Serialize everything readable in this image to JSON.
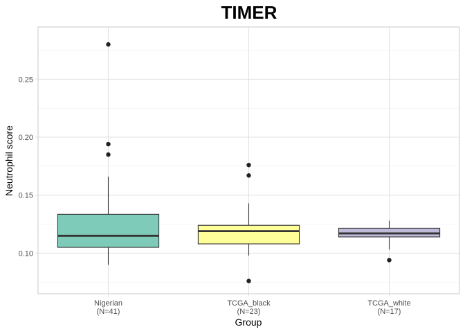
{
  "chart_data": {
    "type": "box",
    "title": "TIMER",
    "xlabel": "Group",
    "ylabel": "Neutrophil score",
    "ylim": [
      0.065,
      0.295
    ],
    "yticks": [
      0.1,
      0.15,
      0.2,
      0.25
    ],
    "ytick_labels": [
      "0.10",
      "0.15",
      "0.20",
      "0.25"
    ],
    "minor_yticks": [
      0.075,
      0.125,
      0.175,
      0.225,
      0.275
    ],
    "grid": true,
    "legend": "none",
    "categories": [
      {
        "name": "Nigerian",
        "n_label": "(N=41)",
        "color": "#7fcbba",
        "q1": 0.105,
        "median": 0.115,
        "q3": 0.1335,
        "whisker_low": 0.09,
        "whisker_high": 0.166,
        "outliers": [
          0.185,
          0.194,
          0.28
        ]
      },
      {
        "name": "TCGA_black",
        "n_label": "(N=23)",
        "color": "#ffff99",
        "q1": 0.108,
        "median": 0.119,
        "q3": 0.124,
        "whisker_low": 0.098,
        "whisker_high": 0.143,
        "outliers": [
          0.076,
          0.167,
          0.176
        ]
      },
      {
        "name": "TCGA_white",
        "n_label": "(N=17)",
        "color": "#bebada",
        "q1": 0.114,
        "median": 0.117,
        "q3": 0.1215,
        "whisker_low": 0.103,
        "whisker_high": 0.128,
        "outliers": [
          0.094
        ]
      }
    ],
    "colors": {
      "panel_border": "#c8c8c8",
      "grid_major": "#e0e0e0",
      "grid_minor": "#efefef",
      "box_stroke": "#333333",
      "point": "#222222",
      "tick_text": "#4d4d4d"
    }
  }
}
